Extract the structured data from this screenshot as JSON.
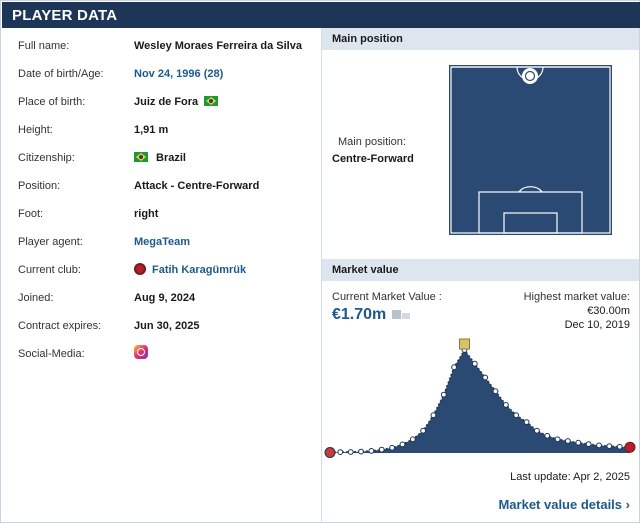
{
  "header": {
    "title": "PLAYER DATA"
  },
  "player": {
    "rows": [
      {
        "key": "name",
        "label": "Full name:",
        "value": "Wesley Moraes Ferreira da Silva"
      },
      {
        "key": "dob",
        "label": "Date of birth/Age:",
        "value": "Nov 24, 1996 (28)"
      },
      {
        "key": "pob",
        "label": "Place of birth:",
        "value": "Juiz de Fora"
      },
      {
        "key": "height",
        "label": "Height:",
        "value": "1,91 m"
      },
      {
        "key": "citizenship",
        "label": "Citizenship:",
        "value": "Brazil"
      },
      {
        "key": "position",
        "label": "Position:",
        "value": "Attack - Centre-Forward"
      },
      {
        "key": "foot",
        "label": "Foot:",
        "value": "right"
      },
      {
        "key": "agent",
        "label": "Player agent:",
        "value": "MegaTeam"
      },
      {
        "key": "club",
        "label": "Current club:",
        "value": "Fatih Karagümrük"
      },
      {
        "key": "joined",
        "label": "Joined:",
        "value": "Aug 9, 2024"
      },
      {
        "key": "contract",
        "label": "Contract expires:",
        "value": "Jun 30, 2025"
      },
      {
        "key": "social",
        "label": "Social-Media:",
        "value": ""
      }
    ]
  },
  "position_section": {
    "title": "Main position",
    "label": "Main position:",
    "value": "Centre-Forward"
  },
  "market_value": {
    "title": "Market value",
    "current_label": "Current Market Value :",
    "current_value": "€1.70m",
    "highest_label": "Highest market value:",
    "highest_value": "€30.00m",
    "highest_date": "Dec 10, 2019",
    "last_update": "Last update: Apr 2, 2025",
    "details_link": "Market value details"
  },
  "chart_data": {
    "type": "area",
    "unit": "€m",
    "values": [
      0.15,
      0.25,
      0.3,
      0.4,
      0.6,
      1.0,
      1.5,
      2.5,
      4.0,
      6.5,
      11.0,
      17.0,
      25.0,
      30.0,
      26.0,
      22.0,
      18.0,
      14.0,
      11.0,
      9.0,
      6.5,
      5.0,
      4.0,
      3.5,
      3.0,
      2.6,
      2.2,
      2.0,
      1.8,
      1.7
    ],
    "ylim": [
      0,
      30
    ],
    "peak_value": 30.0
  },
  "icons": {
    "flag": "brazil-flag-icon",
    "club": "club-crest-icon",
    "social": "instagram-icon"
  },
  "colors": {
    "header_bg": "#1d3557",
    "accent_link": "#1d5a8c",
    "pitch": "#2a4a74",
    "chart_fill": "#2a4a74"
  }
}
